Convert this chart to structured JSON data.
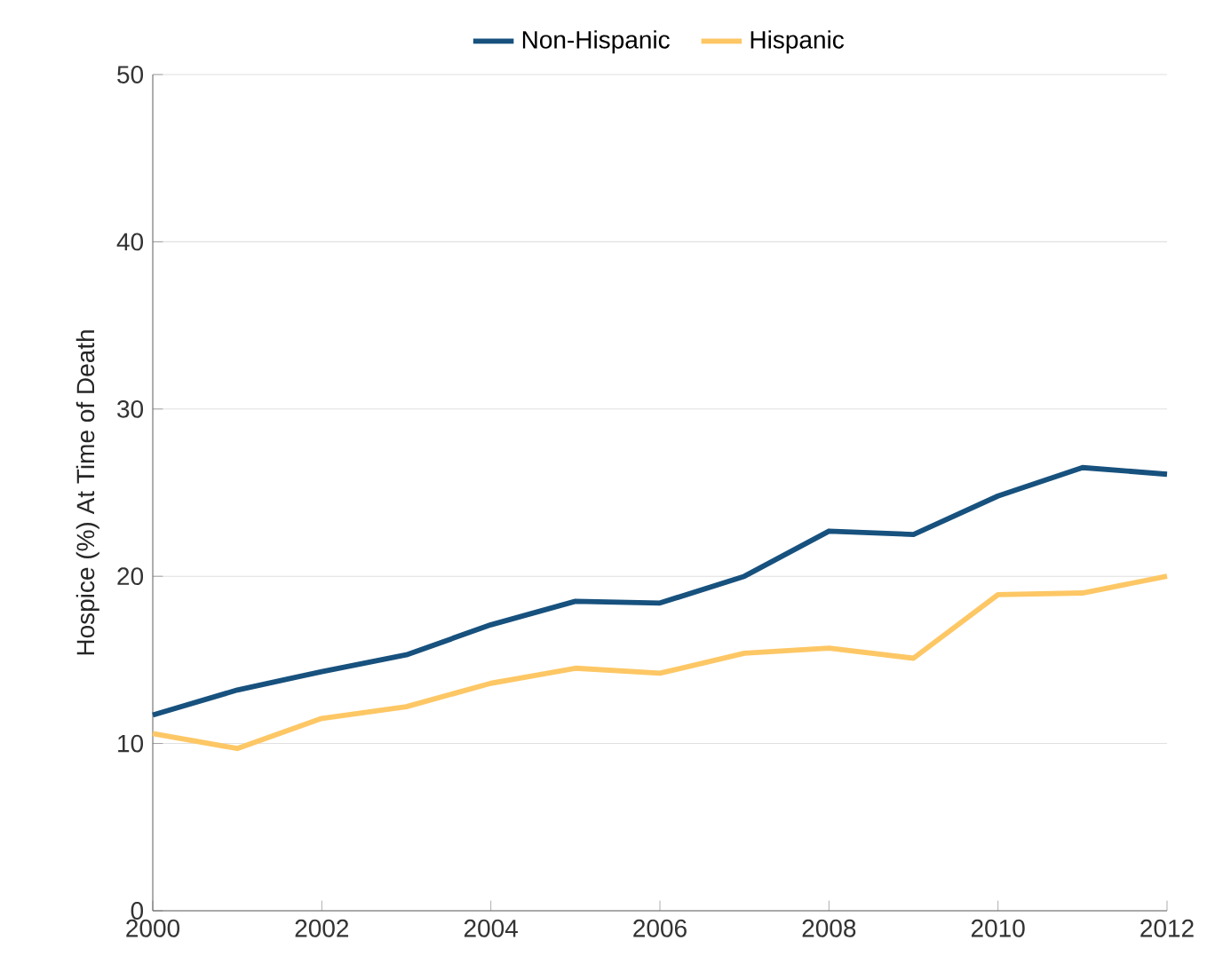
{
  "chart_data": {
    "type": "line",
    "ylabel": "Hospice (%) At Time of Death",
    "x": [
      2000,
      2001,
      2002,
      2003,
      2004,
      2005,
      2006,
      2007,
      2008,
      2009,
      2010,
      2011,
      2012
    ],
    "series": [
      {
        "name": "Non-Hispanic",
        "color": "#17517e",
        "values": [
          11.7,
          13.2,
          14.3,
          15.3,
          17.1,
          18.5,
          18.4,
          20.0,
          22.7,
          22.5,
          24.8,
          26.5,
          26.1
        ]
      },
      {
        "name": "Hispanic",
        "color": "#fdc765",
        "values": [
          10.6,
          9.7,
          11.5,
          12.2,
          13.6,
          14.5,
          14.2,
          15.4,
          15.7,
          15.1,
          18.9,
          19.0,
          20.0
        ]
      }
    ],
    "xlim": [
      2000,
      2012
    ],
    "xticks": [
      2000,
      2002,
      2004,
      2006,
      2008,
      2010,
      2012
    ],
    "ylim": [
      0,
      50
    ],
    "yticks": [
      0,
      10,
      20,
      30,
      40,
      50
    ],
    "grid": "y",
    "legend": "top",
    "marker": "none",
    "line_style": "solid"
  }
}
